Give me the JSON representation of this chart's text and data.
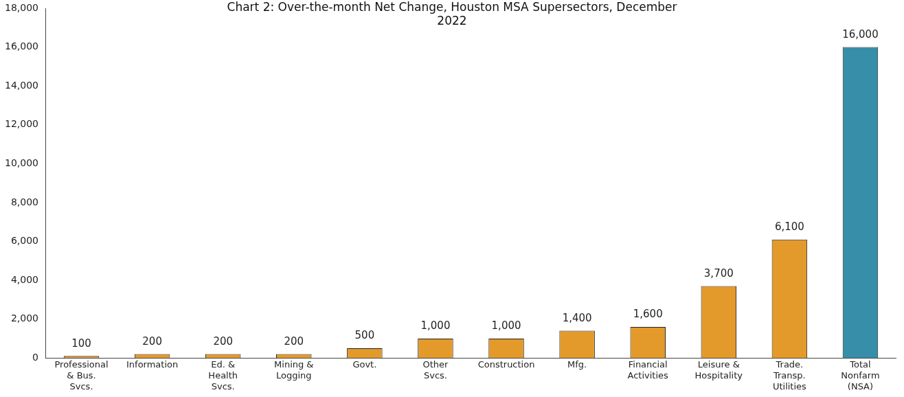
{
  "chart_data": {
    "type": "bar",
    "title": "Chart 2: Over-the-month Net Change, Houston MSA Supersectors, December 2022",
    "categories": [
      "Professional & Bus. Svcs.",
      "Information",
      "Ed. & Health Svcs.",
      "Mining & Logging",
      "Govt.",
      "Other Svcs.",
      "Construction",
      "Mfg.",
      "Financial Activities",
      "Leisure & Hospitality",
      "Trade. Transp. Utilities",
      "Total Nonfarm (NSA)"
    ],
    "values": [
      100,
      200,
      200,
      200,
      500,
      1000,
      1000,
      1400,
      1600,
      3700,
      6100,
      16000
    ],
    "colors": [
      "#e39a2b",
      "#e39a2b",
      "#e39a2b",
      "#e39a2b",
      "#e39a2b",
      "#e39a2b",
      "#e39a2b",
      "#e39a2b",
      "#e39a2b",
      "#e39a2b",
      "#e39a2b",
      "#368ea8"
    ],
    "ylim": [
      0,
      18000
    ],
    "yticks": [
      {
        "value": 0,
        "label": "0"
      },
      {
        "value": 2000,
        "label": "2,000"
      },
      {
        "value": 4000,
        "label": "4,000"
      },
      {
        "value": 6000,
        "label": "6,000"
      },
      {
        "value": 8000,
        "label": "8,000"
      },
      {
        "value": 10000,
        "label": "10,000"
      },
      {
        "value": 12000,
        "label": "12,000"
      },
      {
        "value": 14000,
        "label": "14,000"
      },
      {
        "value": 16000,
        "label": "16,000"
      },
      {
        "value": 18000,
        "label": "18,000"
      }
    ],
    "value_labels": [
      "100",
      "200",
      "200",
      "200",
      "500",
      "1,000",
      "1,000",
      "1,400",
      "1,600",
      "3,700",
      "6,100",
      "16,000"
    ],
    "grid": false,
    "legend": false
  }
}
